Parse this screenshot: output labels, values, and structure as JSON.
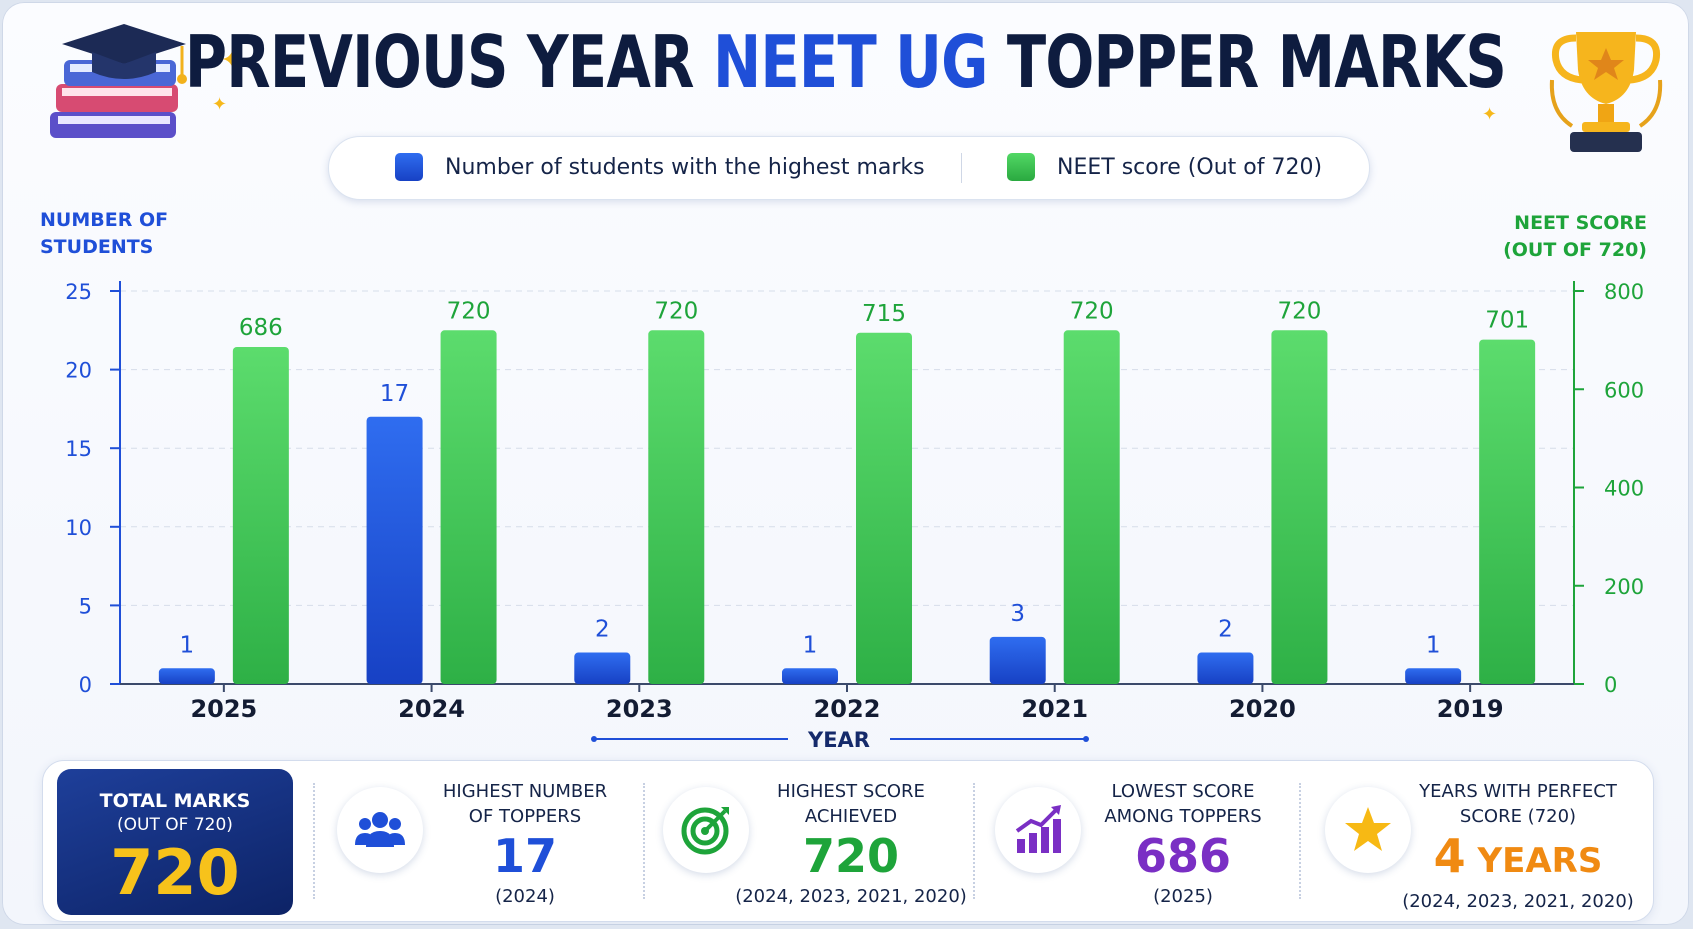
{
  "header": {
    "title_part1": "PREVIOUS YEAR ",
    "title_highlight": "NEET UG",
    "title_part2": " TOPPER MARKS"
  },
  "legend": {
    "students_label": "Number of students with the highest marks",
    "score_label": "NEET score (Out of 720)"
  },
  "colors": {
    "students": "#1f4fd8",
    "score": "#34c44d",
    "students_text": "#1f4fd8",
    "score_text": "#1ea43a"
  },
  "axes": {
    "left_title_line1": "NUMBER OF",
    "left_title_line2": "STUDENTS",
    "right_title_line1": "NEET SCORE",
    "right_title_line2": "(OUT OF 720)",
    "x_title": "YEAR"
  },
  "chart_data": {
    "type": "bar",
    "categories": [
      "2025",
      "2024",
      "2023",
      "2022",
      "2021",
      "2020",
      "2019"
    ],
    "series": [
      {
        "name": "Number of students with the highest marks",
        "axis": "left",
        "values": [
          1,
          17,
          2,
          1,
          3,
          2,
          1
        ]
      },
      {
        "name": "NEET score (Out of 720)",
        "axis": "right",
        "values": [
          686,
          720,
          720,
          715,
          720,
          720,
          701
        ]
      }
    ],
    "xlabel": "YEAR",
    "ylabel_left": "NUMBER OF STUDENTS",
    "ylabel_right": "NEET SCORE (OUT OF 720)",
    "ylim_left": [
      0,
      25
    ],
    "yticks_left": [
      0,
      5,
      10,
      15,
      20,
      25
    ],
    "ylim_right": [
      0,
      800
    ],
    "yticks_right": [
      0,
      200,
      400,
      600,
      800
    ],
    "grid": true,
    "legend_position": "top"
  },
  "stats": {
    "total": {
      "label": "TOTAL MARKS",
      "sub": "(OUT OF 720)",
      "value": "720"
    },
    "toppers": {
      "label1": "HIGHEST NUMBER",
      "label2": "OF TOPPERS",
      "value": "17",
      "sub": "(2024)",
      "icon": "users-icon",
      "color": "#1f4fd8"
    },
    "highest": {
      "label1": "HIGHEST SCORE",
      "label2": "ACHIEVED",
      "value": "720",
      "sub": "(2024, 2023, 2021, 2020)",
      "icon": "target-icon",
      "color": "#1ea43a"
    },
    "lowest": {
      "label1": "LOWEST SCORE",
      "label2": "AMONG TOPPERS",
      "value": "686",
      "sub": "(2025)",
      "icon": "trend-up-icon",
      "color": "#7a2fc4"
    },
    "perfect": {
      "label1": "YEARS WITH PERFECT",
      "label2": "SCORE (720)",
      "value_num": "4",
      "value_word": " YEARS",
      "sub": "(2024, 2023, 2021, 2020)",
      "icon": "star-icon",
      "color": "#f08a12"
    }
  }
}
